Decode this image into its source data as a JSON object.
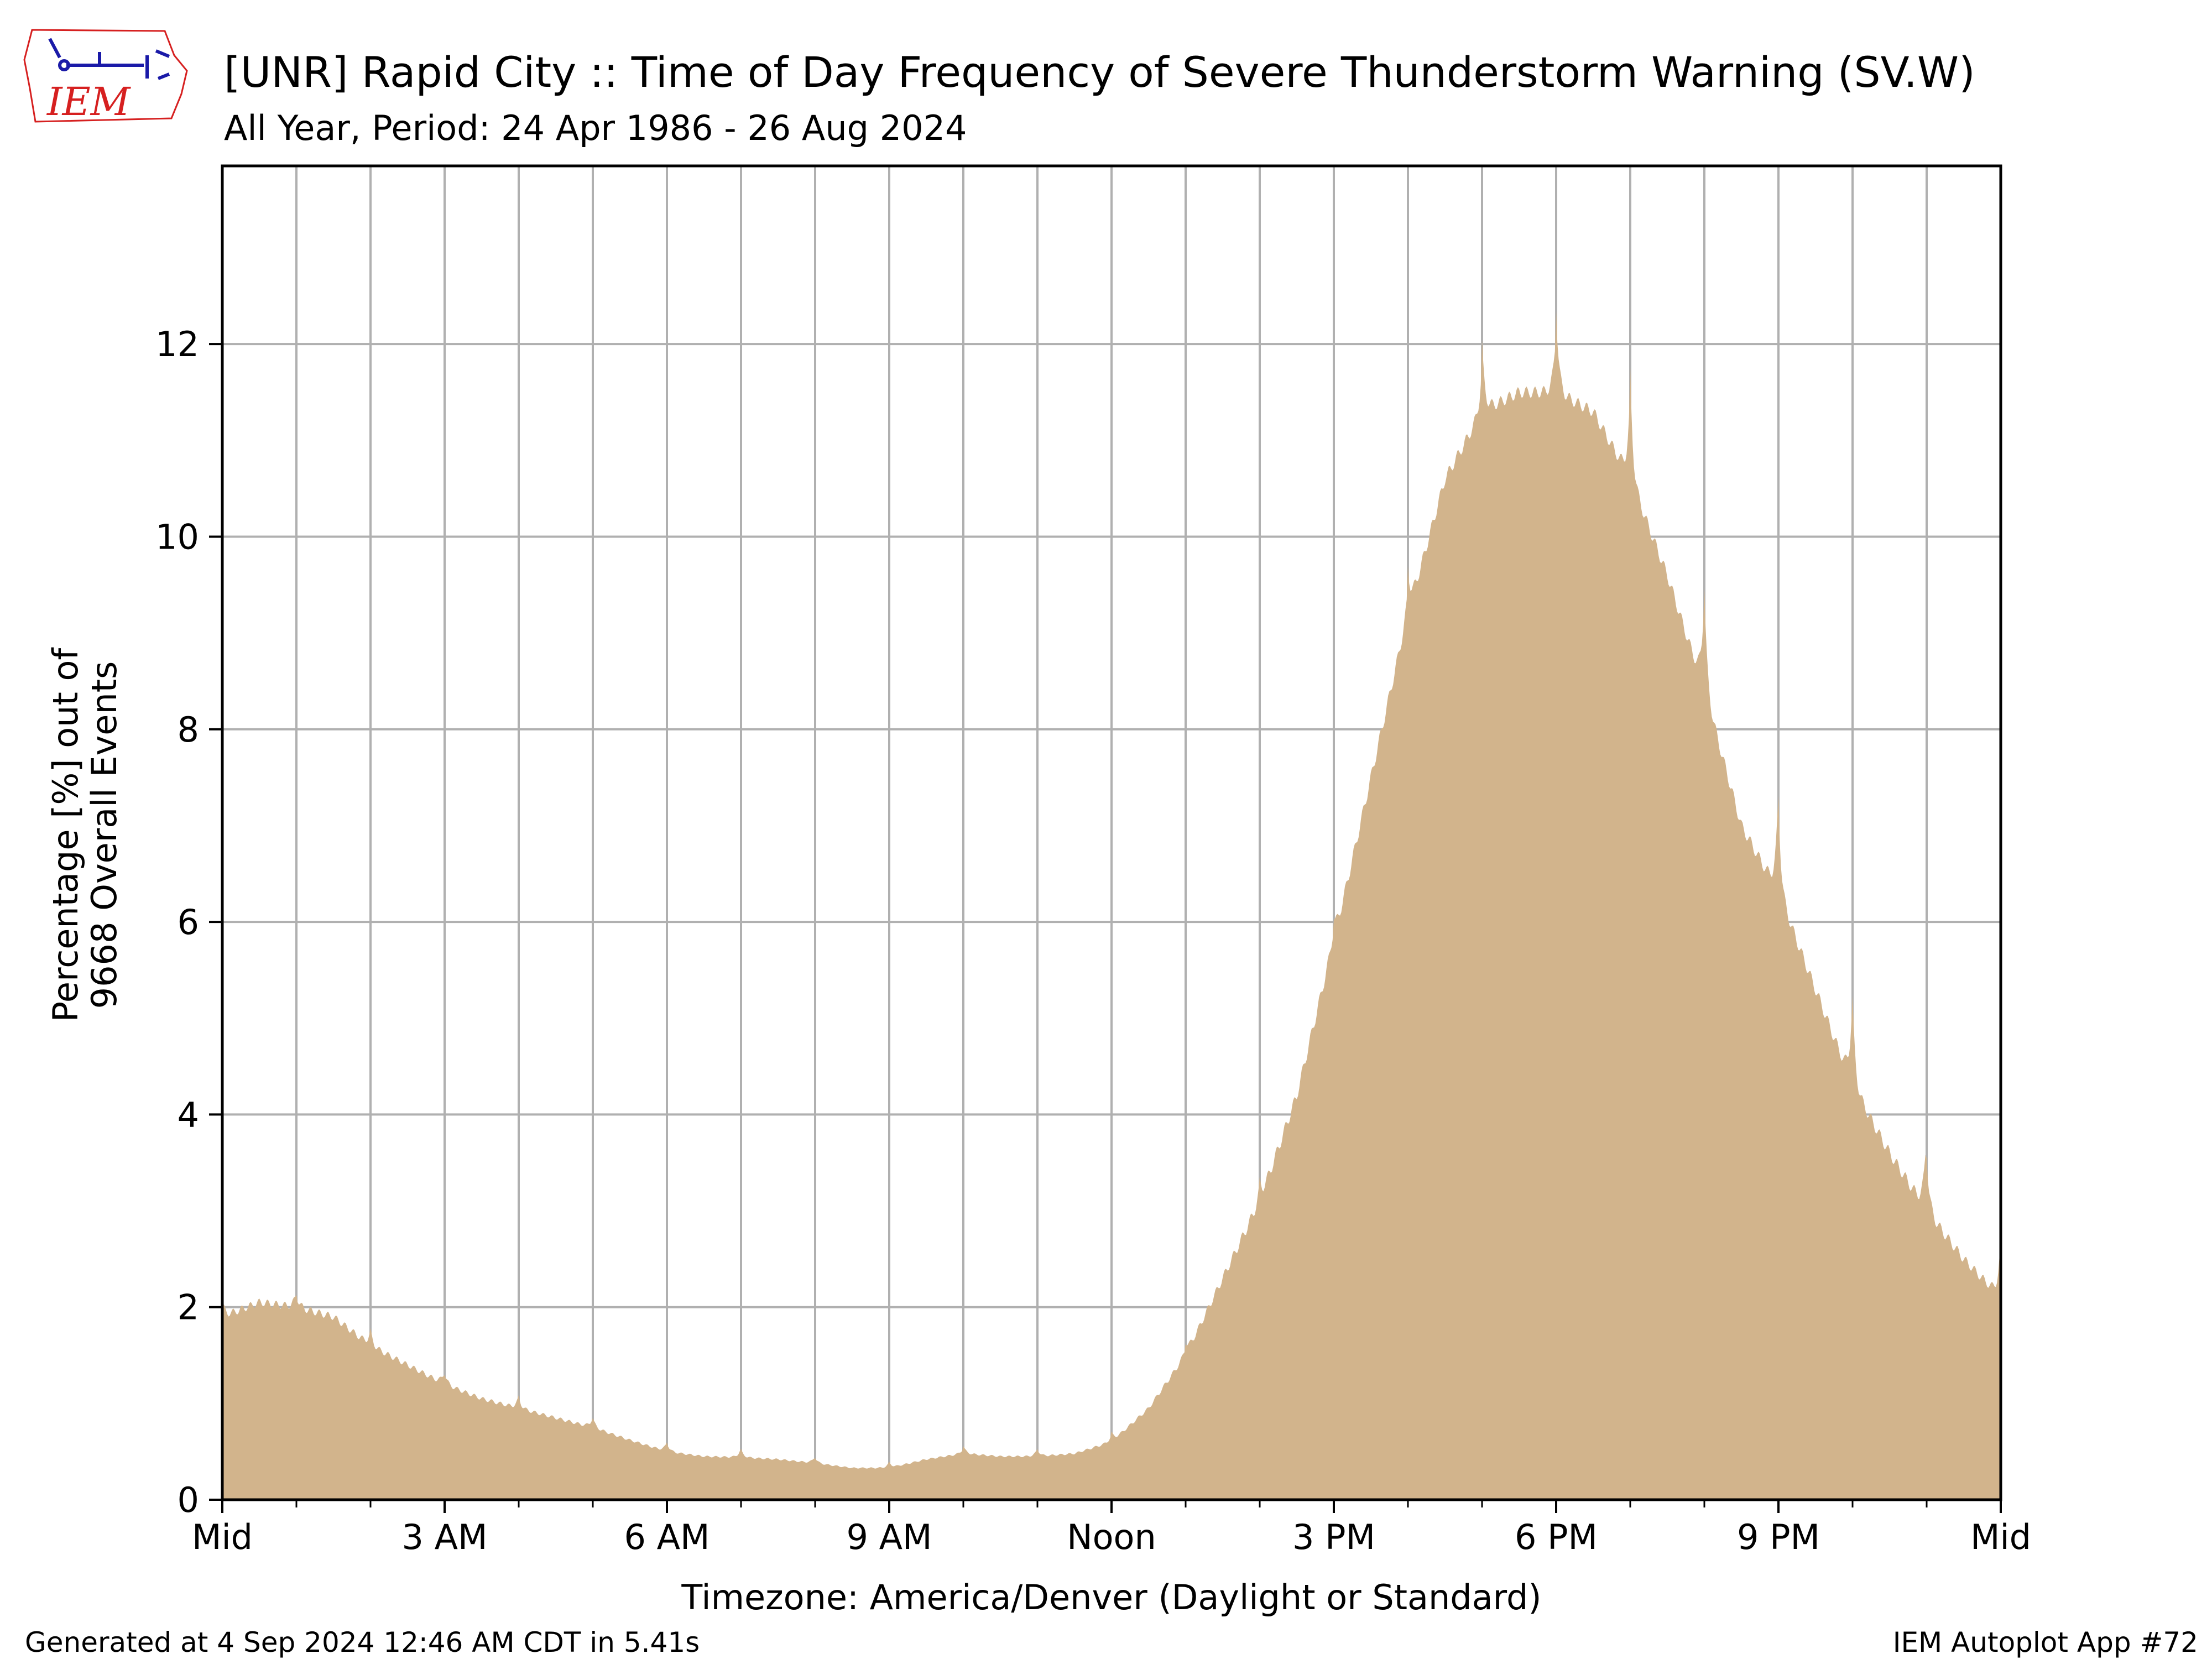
{
  "logo": {
    "text": "IEM",
    "colors": {
      "text": "#d62020",
      "outline": "#d62020",
      "icon": "#1a1aa8"
    }
  },
  "chart_data": {
    "type": "area",
    "title": "[UNR] Rapid City :: Time of Day Frequency of Severe Thunderstorm Warning (SV.W)",
    "subtitle": "All Year, Period: 24 Apr 1986 - 26 Aug 2024",
    "xlabel": "Timezone: America/Denver (Daylight or Standard)",
    "ylabel": [
      "Percentage [%] out of",
      "9668 Overall Events"
    ],
    "x_unit": "hour of day",
    "xlim": [
      0,
      24
    ],
    "ylim": [
      0,
      13.85
    ],
    "x_ticks": [
      0,
      3,
      6,
      9,
      12,
      15,
      18,
      21,
      24
    ],
    "x_tick_labels": [
      "Mid",
      "3 AM",
      "6 AM",
      "9 AM",
      "Noon",
      "3 PM",
      "6 PM",
      "9 PM",
      "Mid"
    ],
    "x_minor_ticks": [
      1,
      2,
      4,
      5,
      7,
      8,
      10,
      11,
      13,
      14,
      16,
      17,
      19,
      20,
      22,
      23
    ],
    "y_ticks": [
      0,
      2,
      4,
      6,
      8,
      10,
      12
    ],
    "y_tick_labels": [
      "0",
      "2",
      "4",
      "6",
      "8",
      "10",
      "12"
    ],
    "grid": true,
    "colors": {
      "fill": "#d2b48c",
      "grid": "#b0b0b0",
      "axes": "#000000"
    },
    "profile_keypoints_x": [
      0,
      0.5,
      1,
      1.5,
      2,
      2.5,
      3,
      3.5,
      4,
      4.5,
      5,
      5.5,
      6,
      6.5,
      7,
      7.5,
      8,
      8.5,
      9,
      9.5,
      10,
      10.5,
      11,
      11.5,
      12,
      12.5,
      13,
      13.5,
      14,
      14.5,
      15,
      15.5,
      16,
      16.5,
      17,
      17.5,
      18,
      18.5,
      19,
      19.5,
      20,
      20.5,
      21,
      21.5,
      22,
      22.5,
      23,
      23.5,
      24
    ],
    "profile_keypoints_y": [
      1.9,
      2.05,
      2.0,
      1.9,
      1.6,
      1.4,
      1.2,
      1.05,
      0.95,
      0.85,
      0.75,
      0.62,
      0.5,
      0.45,
      0.44,
      0.42,
      0.38,
      0.33,
      0.33,
      0.42,
      0.48,
      0.45,
      0.45,
      0.48,
      0.6,
      0.95,
      1.5,
      2.3,
      3.1,
      4.2,
      5.8,
      7.5,
      9.2,
      10.6,
      11.3,
      11.5,
      11.5,
      11.3,
      10.6,
      9.6,
      8.4,
      7.0,
      6.3,
      5.3,
      4.3,
      3.6,
      3.0,
      2.5,
      2.1
    ],
    "hourly_spike_pct": [
      0.15,
      0.15,
      0.15,
      0.12,
      0.12,
      0.1,
      0.1,
      0.08,
      0.06,
      0.06,
      0.08,
      0.08,
      0.1,
      0.15,
      0.2,
      0.25,
      0.5,
      0.7,
      0.9,
      1.1,
      1.1,
      1.0,
      0.9,
      0.6,
      0.3
    ]
  },
  "footer": {
    "generated": "Generated at 4 Sep 2024 12:46 AM CDT in 5.41s",
    "app": "IEM Autoplot App #72"
  }
}
